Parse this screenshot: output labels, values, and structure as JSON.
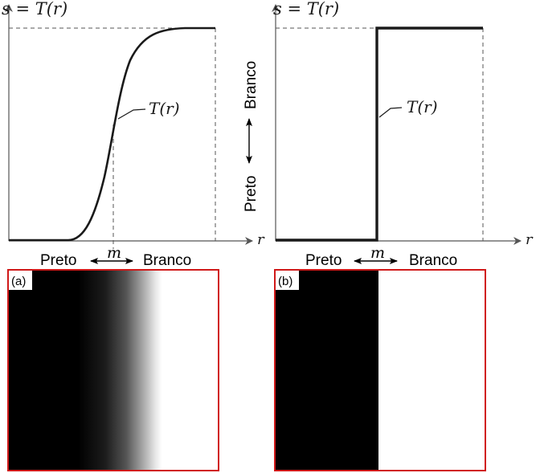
{
  "left_graph": {
    "y_label": "s = T(r)",
    "x_label": "r",
    "curve_label": "T(r)",
    "m_label": "m",
    "preto_label": "Preto",
    "branco_label": "Branco"
  },
  "right_graph": {
    "y_label": "s = T(r)",
    "x_label": "r",
    "curve_label": "T(r)",
    "m_label": "m",
    "preto_label": "Preto",
    "branco_label": "Branco",
    "vertical_preto": "Preto",
    "vertical_branco": "Branco"
  },
  "panel_a": {
    "label": "(a)"
  },
  "panel_b": {
    "label": "(b)"
  },
  "colors": {
    "frame": "#d01919",
    "axis": "#555555",
    "curve": "#1a1a1a",
    "black": "#000000",
    "white": "#ffffff"
  }
}
